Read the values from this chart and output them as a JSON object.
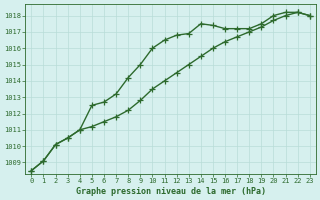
{
  "xlabel": "Graphe pression niveau de la mer (hPa)",
  "xlim": [
    -0.5,
    23.5
  ],
  "ylim": [
    1008.3,
    1018.7
  ],
  "yticks": [
    1009,
    1010,
    1011,
    1012,
    1013,
    1014,
    1015,
    1016,
    1017,
    1018
  ],
  "xticks": [
    0,
    1,
    2,
    3,
    4,
    5,
    6,
    7,
    8,
    9,
    10,
    11,
    12,
    13,
    14,
    15,
    16,
    17,
    18,
    19,
    20,
    21,
    22,
    23
  ],
  "background_color": "#d6f0ee",
  "grid_color": "#b8ddd8",
  "line_color": "#2d6a2d",
  "line1_x": [
    0,
    1,
    2,
    3,
    4,
    5,
    6,
    7,
    8,
    9,
    10,
    11,
    12,
    13,
    14,
    15,
    16,
    17,
    18,
    19,
    20,
    21,
    22,
    23
  ],
  "line1_y": [
    1008.5,
    1009.1,
    1010.1,
    1010.5,
    1011.0,
    1012.5,
    1012.7,
    1013.2,
    1014.2,
    1015.0,
    1016.0,
    1016.5,
    1016.8,
    1016.9,
    1017.5,
    1017.4,
    1017.2,
    1017.2,
    1017.2,
    1017.5,
    1018.0,
    1018.2,
    1018.2,
    1018.0
  ],
  "line2_x": [
    0,
    1,
    2,
    3,
    4,
    5,
    6,
    7,
    8,
    9,
    10,
    11,
    12,
    13,
    14,
    15,
    16,
    17,
    18,
    19,
    20,
    21,
    22,
    23
  ],
  "line2_y": [
    1008.5,
    1009.1,
    1010.1,
    1010.5,
    1011.0,
    1011.2,
    1011.5,
    1011.8,
    1012.2,
    1012.8,
    1013.5,
    1014.0,
    1014.5,
    1015.0,
    1015.5,
    1016.0,
    1016.4,
    1016.7,
    1017.0,
    1017.3,
    1017.7,
    1018.0,
    1018.2,
    1018.0
  ],
  "marker_style": "+",
  "marker_size": 4,
  "line_width": 1.0
}
